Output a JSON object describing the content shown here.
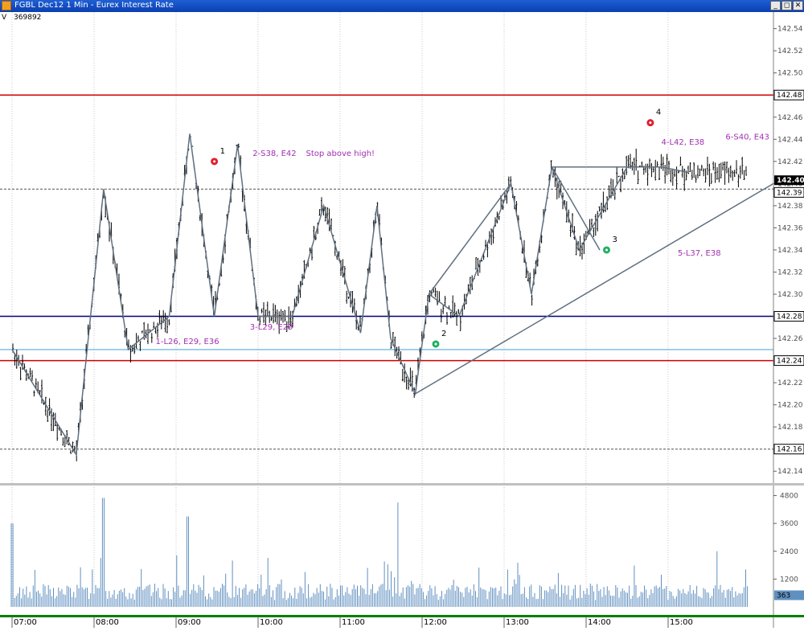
{
  "window": {
    "title": "FGBL Dec12 1 Min - Eurex Interest Rate",
    "buttons": {
      "minimize": "_",
      "restore": "◻",
      "close": "✕"
    }
  },
  "readout": {
    "label": "V",
    "value": "369892"
  },
  "colors": {
    "resistance": "#d00000",
    "support_blue": "#000080",
    "support_light": "#80c0e8",
    "pivot_line": "#607080",
    "bar": "#000000",
    "volume": "#6090c0",
    "marker_red": "#e02030",
    "marker_green": "#20b060",
    "annotation_text": "#a030b0"
  },
  "chart_data": {
    "type": "ohlc",
    "price_axis": {
      "range": [
        142.13,
        142.555
      ],
      "ticks": [
        "142.54",
        "142.52",
        "142.50",
        "142.48",
        "142.46",
        "142.44",
        "142.42",
        "142.40",
        "142.38",
        "142.36",
        "142.34",
        "142.32",
        "142.30",
        "142.28",
        "142.26",
        "142.24",
        "142.22",
        "142.20",
        "142.18",
        "142.16",
        "142.14"
      ]
    },
    "time_axis": {
      "ticks": [
        "07:00",
        "08:00",
        "09:00",
        "10:00",
        "11:00",
        "12:00",
        "13:00",
        "14:00",
        "15:00"
      ]
    },
    "last_price": "142.40",
    "price_labels": [
      "142.48",
      "142.39",
      "142.28",
      "142.24",
      "142.16"
    ],
    "horizontal_lines": [
      {
        "price": 142.48,
        "style": "solid",
        "color": "#d00000"
      },
      {
        "price": 142.395,
        "style": "dashed",
        "color": "#505050"
      },
      {
        "price": 142.28,
        "style": "solid",
        "color": "#000080"
      },
      {
        "price": 142.25,
        "style": "solid",
        "color": "#80c0e8"
      },
      {
        "price": 142.24,
        "style": "solid",
        "color": "#d00000"
      },
      {
        "price": 142.16,
        "style": "dashed",
        "color": "#505050"
      }
    ],
    "swing_path": [
      [
        "07:00",
        142.25
      ],
      [
        "07:47",
        142.155
      ],
      [
        "08:07",
        142.395
      ],
      [
        "08:25",
        142.25
      ],
      [
        "08:55",
        142.28
      ],
      [
        "09:10",
        142.445
      ],
      [
        "09:28",
        142.28
      ],
      [
        "09:45",
        142.435
      ],
      [
        "10:00",
        142.28
      ],
      [
        "10:25",
        142.28
      ],
      [
        "10:48",
        142.38
      ],
      [
        "11:15",
        142.265
      ],
      [
        "11:27",
        142.38
      ],
      [
        "11:37",
        142.26
      ],
      [
        "11:55",
        142.21
      ],
      [
        "12:05",
        142.3
      ],
      [
        "12:27",
        142.28
      ],
      [
        "13:05",
        142.4
      ],
      [
        "13:20",
        142.3
      ],
      [
        "13:35",
        142.415
      ],
      [
        "13:55",
        142.34
      ],
      [
        "14:30",
        142.415
      ],
      [
        "14:55",
        142.415
      ],
      [
        "15:15",
        142.41
      ]
    ],
    "trendlines": [
      {
        "from": [
          "11:55",
          142.21
        ],
        "to": [
          "16:20",
          142.4
        ]
      },
      {
        "from": [
          "12:05",
          142.3
        ],
        "to": [
          "13:05",
          142.4
        ]
      },
      {
        "from": [
          "13:35",
          142.415
        ],
        "to": [
          "14:10",
          142.34
        ]
      }
    ],
    "markers": [
      {
        "label": "1",
        "time": "09:28",
        "price": 142.42,
        "color": "red"
      },
      {
        "label": "2",
        "time": "12:10",
        "price": 142.255,
        "color": "green"
      },
      {
        "label": "3",
        "time": "14:15",
        "price": 142.34,
        "color": "green"
      },
      {
        "label": "4",
        "time": "14:47",
        "price": 142.455,
        "color": "red"
      }
    ],
    "annotations": [
      {
        "text": "1-L26, E29, E36",
        "time": "08:45",
        "price": 142.255
      },
      {
        "text": "2-S38, E42",
        "time": "09:56",
        "price": 142.425
      },
      {
        "text": "Stop above high!",
        "time": "10:35",
        "price": 142.425
      },
      {
        "text": "3-L29, E29",
        "time": "09:54",
        "price": 142.268
      },
      {
        "text": "4-L42, E38",
        "time": "14:55",
        "price": 142.435
      },
      {
        "text": "5-L37, E38",
        "time": "15:07",
        "price": 142.335
      },
      {
        "text": "6-S40, E43",
        "time": "15:42",
        "price": 142.44
      }
    ],
    "volume_axis": {
      "range": [
        0,
        5200
      ],
      "ticks": [
        "4800",
        "3600",
        "2400",
        "1200"
      ]
    },
    "volume_last": "363"
  }
}
